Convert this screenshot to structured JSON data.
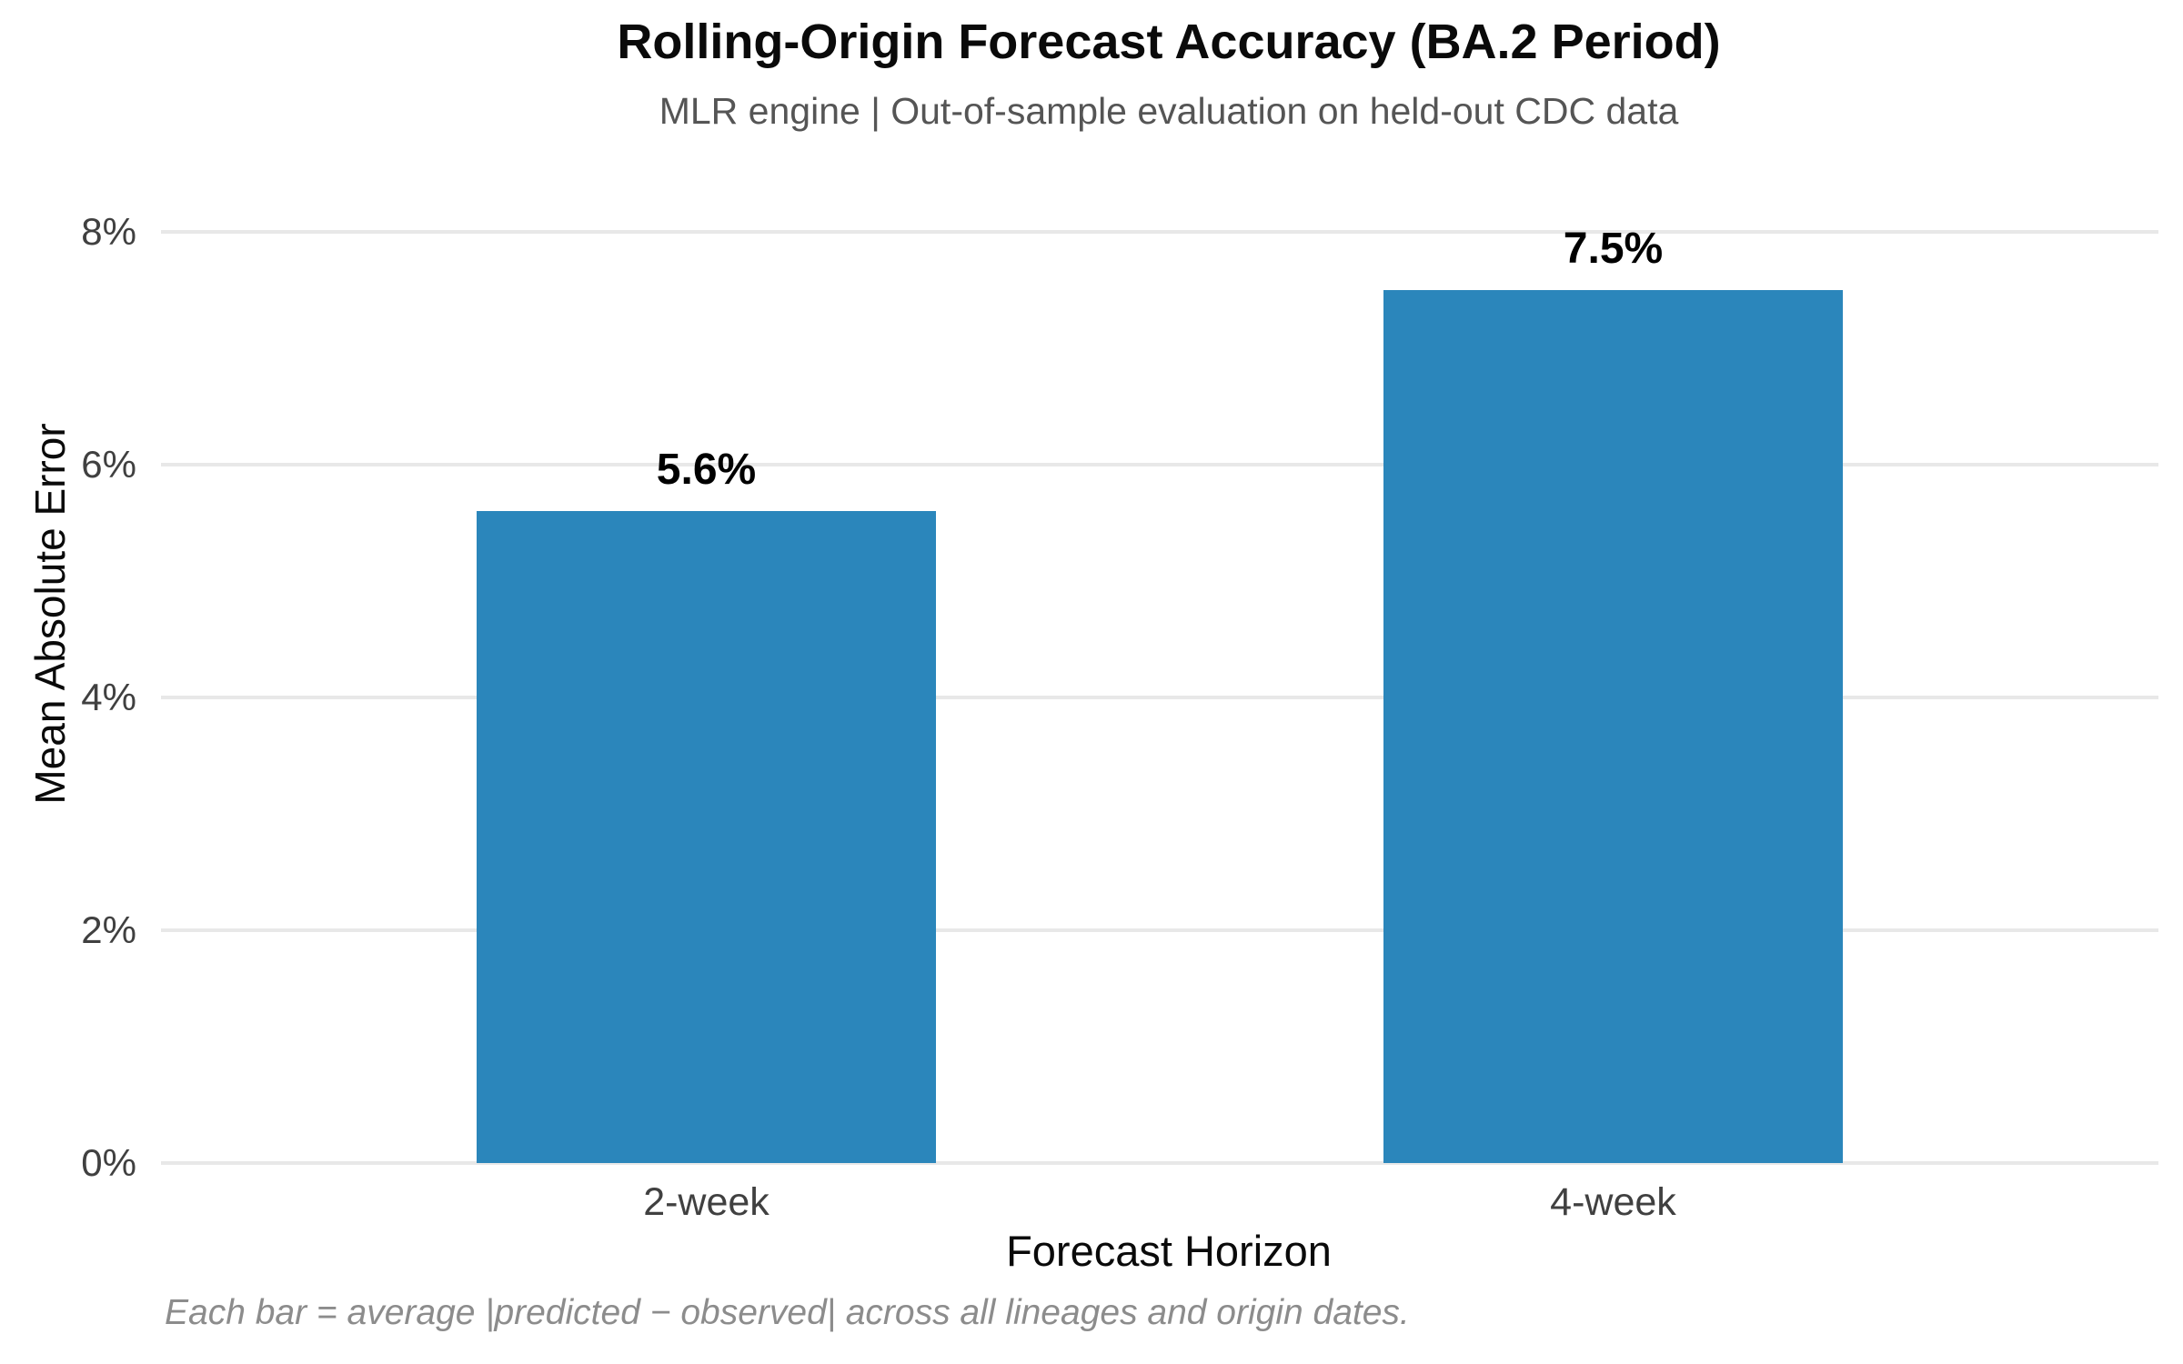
{
  "figure": {
    "colors": {
      "background": "#ffffff",
      "bar": "#2b86bb",
      "gridline": "#e8e8e8",
      "title": "#0a0a0a",
      "subtitle": "#555555",
      "tick_label": "#404040",
      "axis_label": "#0a0a0a",
      "value_label": "#000000",
      "caption": "#8c8c8c"
    }
  },
  "chart_data": {
    "type": "bar",
    "title": "Rolling-Origin Forecast Accuracy (BA.2 Period)",
    "subtitle": "MLR engine | Out-of-sample evaluation on held-out CDC data",
    "categories": [
      "2-week",
      "4-week"
    ],
    "values": [
      5.6,
      7.5
    ],
    "value_labels": [
      "5.6%",
      "7.5%"
    ],
    "xlabel": "Forecast Horizon",
    "ylabel": "Mean Absolute Error",
    "ylim": [
      0,
      8
    ],
    "yticks": [
      0,
      2,
      4,
      6,
      8
    ],
    "ytick_labels": [
      "0%",
      "2%",
      "4%",
      "6%",
      "8%"
    ],
    "grid": "horizontal gridlines only, no axis spines",
    "legend": "none",
    "caption": "Each bar = average |predicted − observed| across all lineages and origin dates."
  }
}
